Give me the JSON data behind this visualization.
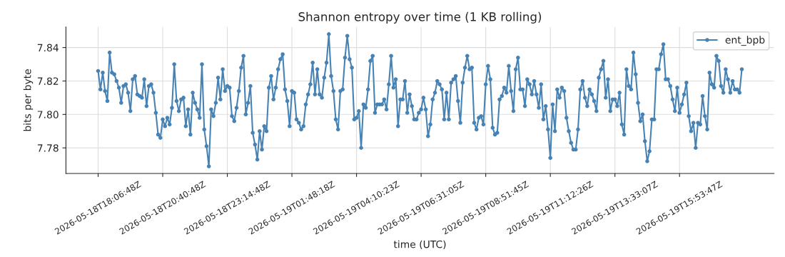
{
  "chart_data": {
    "type": "line",
    "title": "Shannon entropy over time (1 KB rolling)",
    "xlabel": "time (UTC)",
    "ylabel": "bits per byte",
    "categories": [
      "2026-05-18T18:06:48Z",
      null,
      null,
      null,
      null,
      null,
      null,
      null,
      null,
      null,
      null,
      null,
      null,
      null,
      null,
      null,
      null,
      null,
      null,
      null,
      null,
      null,
      null,
      null,
      null,
      null,
      null,
      null,
      "2026-05-18T20:40:48Z",
      null,
      null,
      null,
      null,
      null,
      null,
      null,
      null,
      null,
      null,
      null,
      null,
      null,
      null,
      null,
      null,
      null,
      null,
      null,
      null,
      null,
      null,
      null,
      null,
      null,
      null,
      null,
      "2026-05-18T23:14:48Z",
      null,
      null,
      null,
      null,
      null,
      null,
      null,
      null,
      null,
      null,
      null,
      null,
      null,
      null,
      null,
      null,
      null,
      null,
      null,
      null,
      null,
      null,
      null,
      null,
      null,
      null,
      null,
      "2026-05-19T01:48:18Z",
      null,
      null,
      null,
      null,
      null,
      null,
      null,
      null,
      null,
      null,
      null,
      null,
      null,
      null,
      null,
      null,
      null,
      null,
      null,
      null,
      null,
      null,
      null,
      null,
      null,
      null,
      null,
      "2026-05-19T04:10:23Z",
      null,
      null,
      null,
      null,
      null,
      null,
      null,
      null,
      null,
      null,
      null,
      null,
      null,
      null,
      null,
      null,
      null,
      null,
      null,
      null,
      null,
      null,
      null,
      null,
      null,
      null,
      null,
      "2026-05-19T06:31:05Z",
      null,
      null,
      null,
      null,
      null,
      null,
      null,
      null,
      null,
      null,
      null,
      null,
      null,
      null,
      null,
      null,
      null,
      null,
      null,
      null,
      null,
      null,
      null,
      null,
      null,
      null,
      null,
      "2026-05-19T08:51:45Z",
      null,
      null,
      null,
      null,
      null,
      null,
      null,
      null,
      null,
      null,
      null,
      null,
      null,
      null,
      null,
      null,
      null,
      null,
      null,
      null,
      null,
      null,
      null,
      null,
      null,
      null,
      null,
      "2026-05-19T11:12:26Z",
      null,
      null,
      null,
      null,
      null,
      null,
      null,
      null,
      null,
      null,
      null,
      null,
      null,
      null,
      null,
      null,
      null,
      null,
      null,
      null,
      null,
      null,
      null,
      null,
      null,
      null,
      null,
      "2026-05-19T13:33:07Z",
      null,
      null,
      null,
      null,
      null,
      null,
      null,
      null,
      null,
      null,
      null,
      null,
      null,
      null,
      null,
      null,
      null,
      null,
      null,
      null,
      null,
      null,
      null,
      null,
      null,
      null,
      null,
      "2026-05-19T15:53:47Z",
      null,
      null,
      null,
      null,
      null,
      null,
      null,
      null,
      null,
      null,
      null,
      null,
      null,
      null,
      null,
      null,
      null,
      null,
      null,
      null,
      null,
      null,
      null,
      null,
      null,
      null,
      null
    ],
    "series": [
      {
        "name": "ent_bpb",
        "color": "#4682b4",
        "values": [
          7.826,
          7.815,
          7.825,
          7.814,
          7.808,
          7.837,
          7.825,
          7.824,
          7.82,
          7.816,
          7.807,
          7.817,
          7.818,
          7.813,
          7.802,
          7.821,
          7.823,
          7.812,
          7.811,
          7.81,
          7.821,
          7.805,
          7.817,
          7.818,
          7.813,
          7.801,
          7.788,
          7.786,
          7.797,
          7.793,
          7.798,
          7.794,
          7.804,
          7.83,
          7.808,
          7.802,
          7.809,
          7.81,
          7.793,
          7.803,
          7.788,
          7.813,
          7.807,
          7.803,
          7.798,
          7.83,
          7.791,
          7.781,
          7.769,
          7.803,
          7.799,
          7.807,
          7.822,
          7.809,
          7.827,
          7.814,
          7.817,
          7.816,
          7.799,
          7.796,
          7.804,
          7.814,
          7.828,
          7.835,
          7.8,
          7.807,
          7.817,
          7.789,
          7.782,
          7.773,
          7.79,
          7.779,
          7.793,
          7.79,
          7.816,
          7.823,
          7.809,
          7.816,
          7.827,
          7.833,
          7.836,
          7.815,
          7.808,
          7.793,
          7.814,
          7.813,
          7.797,
          7.795,
          7.791,
          7.793,
          7.806,
          7.812,
          7.818,
          7.831,
          7.812,
          7.827,
          7.812,
          7.81,
          7.822,
          7.831,
          7.848,
          7.823,
          7.814,
          7.797,
          7.791,
          7.814,
          7.815,
          7.834,
          7.847,
          7.833,
          7.828,
          7.797,
          7.798,
          7.802,
          7.78,
          7.806,
          7.804,
          7.815,
          7.832,
          7.835,
          7.801,
          7.806,
          7.806,
          7.806,
          7.809,
          7.803,
          7.818,
          7.835,
          7.816,
          7.821,
          7.793,
          7.809,
          7.809,
          7.82,
          7.801,
          7.812,
          7.805,
          7.797,
          7.797,
          7.801,
          7.803,
          7.81,
          7.803,
          7.787,
          7.794,
          7.809,
          7.813,
          7.82,
          7.818,
          7.815,
          7.797,
          7.813,
          7.797,
          7.819,
          7.821,
          7.823,
          7.808,
          7.795,
          7.819,
          7.828,
          7.835,
          7.827,
          7.828,
          7.795,
          7.791,
          7.798,
          7.799,
          7.794,
          7.818,
          7.829,
          7.821,
          7.792,
          7.788,
          7.789,
          7.809,
          7.811,
          7.816,
          7.813,
          7.829,
          7.814,
          7.802,
          7.827,
          7.834,
          7.815,
          7.815,
          7.805,
          7.821,
          7.818,
          7.812,
          7.82,
          7.812,
          7.804,
          7.818,
          7.797,
          7.805,
          7.791,
          7.774,
          7.806,
          7.79,
          7.815,
          7.81,
          7.816,
          7.814,
          7.798,
          7.79,
          7.783,
          7.779,
          7.779,
          7.791,
          7.815,
          7.82,
          7.81,
          7.805,
          7.815,
          7.812,
          7.808,
          7.802,
          7.822,
          7.827,
          7.832,
          7.81,
          7.821,
          7.802,
          7.809,
          7.809,
          7.805,
          7.813,
          7.794,
          7.788,
          7.827,
          7.817,
          7.815,
          7.837,
          7.824,
          7.807,
          7.796,
          7.8,
          7.784,
          7.772,
          7.778,
          7.797,
          7.797,
          7.827,
          7.827,
          7.836,
          7.842,
          7.821,
          7.821,
          7.817,
          7.809,
          7.802,
          7.816,
          7.801,
          7.806,
          7.812,
          7.819,
          7.799,
          7.79,
          7.795,
          7.78,
          7.795,
          7.794,
          7.811,
          7.799,
          7.791,
          7.825,
          7.818,
          7.816,
          7.835,
          7.832,
          7.817,
          7.813,
          7.827,
          7.821,
          7.813,
          7.82,
          7.815,
          7.815,
          7.813,
          7.827
        ]
      }
    ],
    "ylim": [
      7.7647,
      7.8523
    ],
    "yticks": [
      7.78,
      {
        "value": 7.8,
        "label": "7.80"
      },
      7.82,
      7.84
    ],
    "grid": true,
    "legend": "top right",
    "marker": "circle",
    "line_style": "solid"
  }
}
